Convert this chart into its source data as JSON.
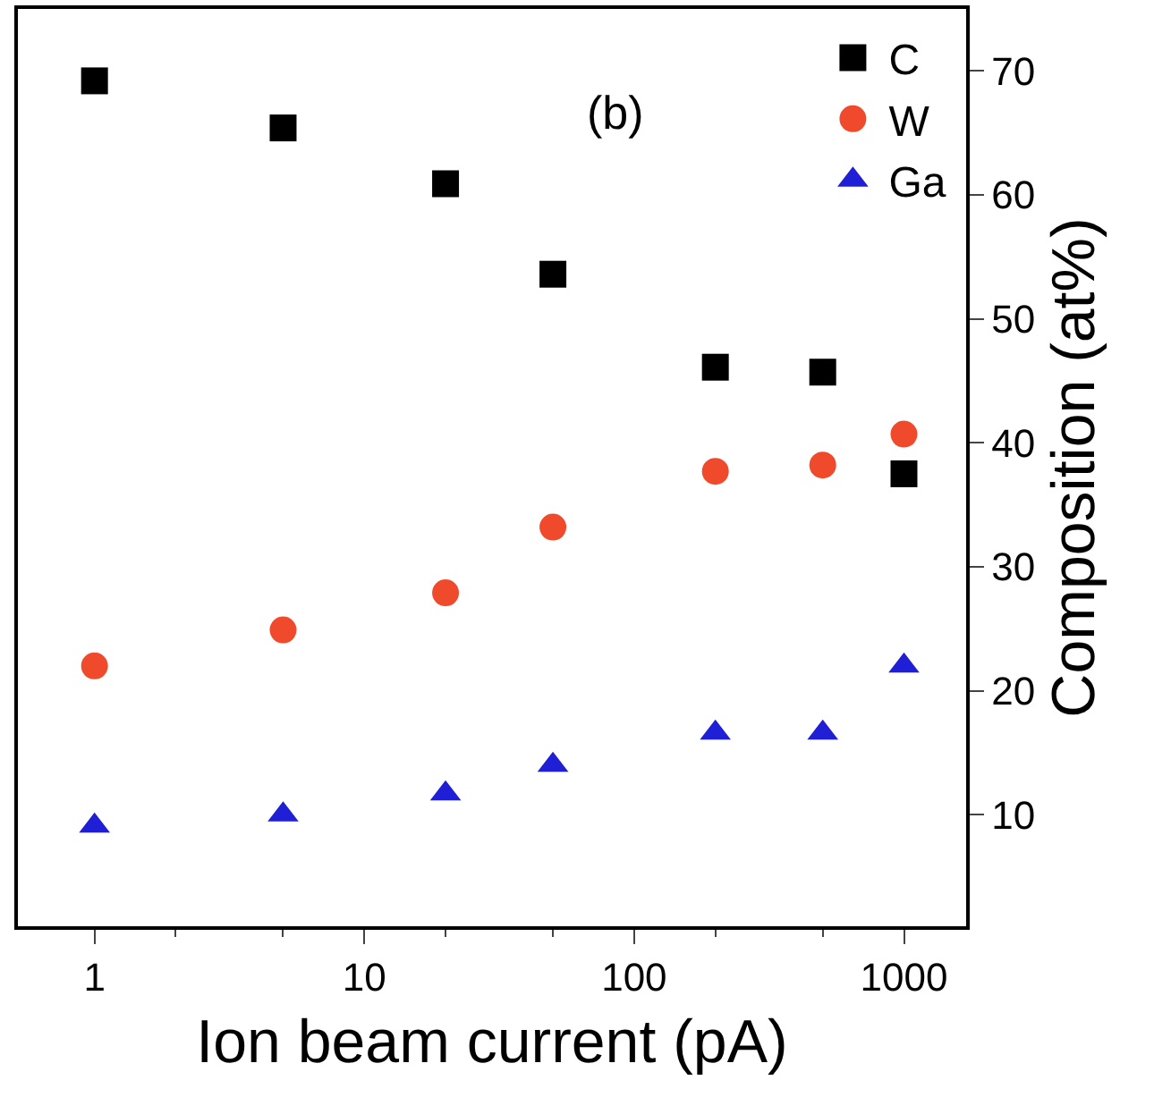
{
  "chart_data": {
    "type": "scatter",
    "xlabel": "Ion beam current (pA)",
    "ylabel": "Composition (at%)",
    "annotations": [
      "(b)"
    ],
    "x": [
      1,
      5,
      20,
      50,
      200,
      500,
      1000
    ],
    "series": [
      {
        "name": "C",
        "color": "#000000",
        "marker": "square",
        "values": [
          69.2,
          65.4,
          60.9,
          53.6,
          46.1,
          45.7,
          37.5
        ]
      },
      {
        "name": "W",
        "color": "#f04a2c",
        "marker": "circle",
        "values": [
          22.0,
          24.9,
          27.9,
          33.2,
          37.7,
          38.2,
          40.7
        ]
      },
      {
        "name": "Ga",
        "color": "#1f1fd6",
        "marker": "triangle",
        "values": [
          9.1,
          10.0,
          11.7,
          14.0,
          16.6,
          16.6,
          22.0
        ]
      }
    ],
    "log": "x",
    "xlim": [
      0.52,
      1700
    ],
    "xticks": [
      1,
      10,
      100,
      1000
    ],
    "ylim": [
      1,
      75
    ],
    "yticks": [
      10,
      20,
      30,
      40,
      50,
      60,
      70
    ],
    "grid": false,
    "legend": "top right"
  }
}
